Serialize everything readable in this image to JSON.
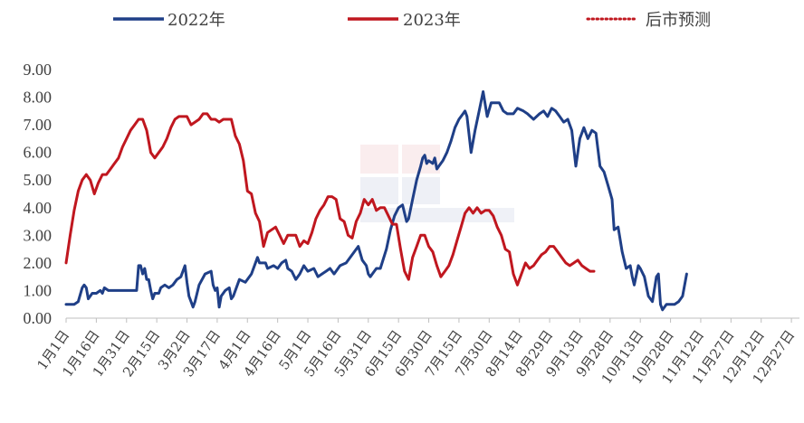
{
  "chart_data": {
    "type": "line",
    "ylim": [
      0,
      9
    ],
    "yticks": [
      "0.00",
      "1.00",
      "2.00",
      "3.00",
      "4.00",
      "5.00",
      "6.00",
      "7.00",
      "8.00",
      "9.00"
    ],
    "xlim": [
      1,
      365
    ],
    "xticks": [
      {
        "label": "1月1日",
        "d": 1
      },
      {
        "label": "1月16日",
        "d": 16
      },
      {
        "label": "1月31日",
        "d": 31
      },
      {
        "label": "2月15日",
        "d": 46
      },
      {
        "label": "3月2日",
        "d": 61
      },
      {
        "label": "3月17日",
        "d": 76
      },
      {
        "label": "4月1日",
        "d": 91
      },
      {
        "label": "4月16日",
        "d": 106
      },
      {
        "label": "5月1日",
        "d": 121
      },
      {
        "label": "5月16日",
        "d": 136
      },
      {
        "label": "5月31日",
        "d": 151
      },
      {
        "label": "6月15日",
        "d": 166
      },
      {
        "label": "6月30日",
        "d": 181
      },
      {
        "label": "7月15日",
        "d": 196
      },
      {
        "label": "7月30日",
        "d": 211
      },
      {
        "label": "8月14日",
        "d": 226
      },
      {
        "label": "8月29日",
        "d": 241
      },
      {
        "label": "9月13日",
        "d": 256
      },
      {
        "label": "9月28日",
        "d": 271
      },
      {
        "label": "10月13日",
        "d": 286
      },
      {
        "label": "10月28日",
        "d": 301
      },
      {
        "label": "11月12日",
        "d": 316
      },
      {
        "label": "11月27日",
        "d": 331
      },
      {
        "label": "12月12日",
        "d": 346
      },
      {
        "label": "12月27日",
        "d": 361
      }
    ],
    "legend": {
      "placement": "top",
      "entries": [
        "2022年",
        "2023年",
        "后市预测"
      ]
    },
    "series": [
      {
        "name": "2022年",
        "color": "#1F3F87",
        "points": [
          [
            1,
            0.5
          ],
          [
            5,
            0.5
          ],
          [
            7,
            0.6
          ],
          [
            9,
            1.1
          ],
          [
            10,
            1.2
          ],
          [
            11,
            1.1
          ],
          [
            12,
            0.7
          ],
          [
            14,
            0.9
          ],
          [
            16,
            0.9
          ],
          [
            18,
            1.0
          ],
          [
            19,
            0.9
          ],
          [
            20,
            1.1
          ],
          [
            22,
            1.0
          ],
          [
            30,
            1.0
          ],
          [
            36,
            1.0
          ],
          [
            37,
            1.9
          ],
          [
            38,
            1.9
          ],
          [
            39,
            1.6
          ],
          [
            40,
            1.8
          ],
          [
            41,
            1.4
          ],
          [
            42,
            1.4
          ],
          [
            43,
            1.0
          ],
          [
            44,
            0.7
          ],
          [
            45,
            0.9
          ],
          [
            47,
            0.9
          ],
          [
            48,
            1.1
          ],
          [
            50,
            1.2
          ],
          [
            52,
            1.1
          ],
          [
            54,
            1.2
          ],
          [
            56,
            1.4
          ],
          [
            58,
            1.5
          ],
          [
            60,
            1.9
          ],
          [
            61,
            1.3
          ],
          [
            62,
            0.8
          ],
          [
            63,
            0.6
          ],
          [
            64,
            0.4
          ],
          [
            65,
            0.6
          ],
          [
            67,
            1.2
          ],
          [
            70,
            1.6
          ],
          [
            73,
            1.7
          ],
          [
            74,
            1.2
          ],
          [
            75,
            1.0
          ],
          [
            76,
            1.1
          ],
          [
            77,
            0.4
          ],
          [
            78,
            0.8
          ],
          [
            80,
            1.0
          ],
          [
            82,
            1.1
          ],
          [
            83,
            0.7
          ],
          [
            84,
            0.8
          ],
          [
            87,
            1.4
          ],
          [
            90,
            1.3
          ],
          [
            93,
            1.6
          ],
          [
            96,
            2.2
          ],
          [
            97,
            2.0
          ],
          [
            100,
            2.0
          ],
          [
            101,
            1.8
          ],
          [
            104,
            1.9
          ],
          [
            106,
            1.8
          ],
          [
            108,
            2.0
          ],
          [
            110,
            2.1
          ],
          [
            111,
            1.8
          ],
          [
            113,
            1.7
          ],
          [
            115,
            1.4
          ],
          [
            117,
            1.6
          ],
          [
            119,
            1.9
          ],
          [
            121,
            1.7
          ],
          [
            124,
            1.8
          ],
          [
            126,
            1.5
          ],
          [
            128,
            1.6
          ],
          [
            130,
            1.7
          ],
          [
            132,
            1.8
          ],
          [
            134,
            1.6
          ],
          [
            137,
            1.9
          ],
          [
            140,
            2.0
          ],
          [
            143,
            2.3
          ],
          [
            146,
            2.6
          ],
          [
            148,
            2.1
          ],
          [
            150,
            1.9
          ],
          [
            151,
            1.6
          ],
          [
            152,
            1.5
          ],
          [
            153,
            1.6
          ],
          [
            155,
            1.8
          ],
          [
            157,
            1.8
          ],
          [
            160,
            2.5
          ],
          [
            162,
            3.2
          ],
          [
            164,
            3.7
          ],
          [
            166,
            4.0
          ],
          [
            168,
            4.1
          ],
          [
            169,
            3.8
          ],
          [
            170,
            3.5
          ],
          [
            171,
            3.6
          ],
          [
            173,
            4.3
          ],
          [
            175,
            5.0
          ],
          [
            177,
            5.5
          ],
          [
            178,
            5.8
          ],
          [
            179,
            5.9
          ],
          [
            180,
            5.6
          ],
          [
            181,
            5.7
          ],
          [
            183,
            5.6
          ],
          [
            184,
            5.8
          ],
          [
            185,
            5.4
          ],
          [
            186,
            5.5
          ],
          [
            188,
            5.7
          ],
          [
            190,
            6.0
          ],
          [
            192,
            6.4
          ],
          [
            194,
            6.9
          ],
          [
            196,
            7.2
          ],
          [
            198,
            7.4
          ],
          [
            199,
            7.5
          ],
          [
            200,
            7.3
          ],
          [
            202,
            6.0
          ],
          [
            204,
            6.8
          ],
          [
            206,
            7.5
          ],
          [
            208,
            8.2
          ],
          [
            210,
            7.3
          ],
          [
            212,
            7.8
          ],
          [
            214,
            7.8
          ],
          [
            216,
            7.8
          ],
          [
            218,
            7.5
          ],
          [
            220,
            7.4
          ],
          [
            223,
            7.4
          ],
          [
            225,
            7.6
          ],
          [
            228,
            7.5
          ],
          [
            230,
            7.4
          ],
          [
            233,
            7.2
          ],
          [
            236,
            7.4
          ],
          [
            238,
            7.5
          ],
          [
            240,
            7.3
          ],
          [
            242,
            7.6
          ],
          [
            244,
            7.5
          ],
          [
            246,
            7.3
          ],
          [
            248,
            7.1
          ],
          [
            250,
            7.2
          ],
          [
            252,
            6.8
          ],
          [
            254,
            5.5
          ],
          [
            256,
            6.5
          ],
          [
            258,
            6.9
          ],
          [
            260,
            6.5
          ],
          [
            262,
            6.8
          ],
          [
            264,
            6.7
          ],
          [
            266,
            5.5
          ],
          [
            268,
            5.3
          ],
          [
            270,
            4.8
          ],
          [
            272,
            4.3
          ],
          [
            273,
            3.2
          ],
          [
            275,
            3.3
          ],
          [
            277,
            2.4
          ],
          [
            279,
            1.8
          ],
          [
            281,
            1.9
          ],
          [
            282,
            1.5
          ],
          [
            283,
            1.2
          ],
          [
            285,
            1.9
          ],
          [
            286,
            1.8
          ],
          [
            288,
            1.5
          ],
          [
            290,
            0.8
          ],
          [
            292,
            0.6
          ],
          [
            294,
            1.5
          ],
          [
            295,
            1.6
          ],
          [
            296,
            0.5
          ],
          [
            297,
            0.3
          ],
          [
            299,
            0.5
          ],
          [
            301,
            0.5
          ],
          [
            303,
            0.5
          ],
          [
            305,
            0.6
          ],
          [
            307,
            0.8
          ],
          [
            309,
            1.6
          ]
        ]
      },
      {
        "name": "2023年",
        "color": "#C0171F",
        "points": [
          [
            1,
            2.0
          ],
          [
            3,
            3.0
          ],
          [
            5,
            3.9
          ],
          [
            7,
            4.6
          ],
          [
            9,
            5.0
          ],
          [
            11,
            5.2
          ],
          [
            13,
            5.0
          ],
          [
            15,
            4.5
          ],
          [
            17,
            4.9
          ],
          [
            19,
            5.2
          ],
          [
            21,
            5.2
          ],
          [
            23,
            5.4
          ],
          [
            25,
            5.6
          ],
          [
            27,
            5.8
          ],
          [
            29,
            6.2
          ],
          [
            31,
            6.5
          ],
          [
            33,
            6.8
          ],
          [
            35,
            7.0
          ],
          [
            37,
            7.2
          ],
          [
            39,
            7.2
          ],
          [
            41,
            6.8
          ],
          [
            43,
            6.0
          ],
          [
            45,
            5.8
          ],
          [
            47,
            6.0
          ],
          [
            49,
            6.2
          ],
          [
            51,
            6.5
          ],
          [
            53,
            6.9
          ],
          [
            55,
            7.2
          ],
          [
            57,
            7.3
          ],
          [
            59,
            7.3
          ],
          [
            61,
            7.3
          ],
          [
            63,
            7.0
          ],
          [
            65,
            7.1
          ],
          [
            67,
            7.2
          ],
          [
            69,
            7.4
          ],
          [
            71,
            7.4
          ],
          [
            73,
            7.2
          ],
          [
            75,
            7.2
          ],
          [
            77,
            7.1
          ],
          [
            79,
            7.2
          ],
          [
            81,
            7.2
          ],
          [
            83,
            7.2
          ],
          [
            85,
            6.6
          ],
          [
            87,
            6.3
          ],
          [
            89,
            5.7
          ],
          [
            91,
            4.6
          ],
          [
            93,
            4.5
          ],
          [
            95,
            3.8
          ],
          [
            97,
            3.5
          ],
          [
            99,
            2.6
          ],
          [
            101,
            3.1
          ],
          [
            103,
            3.2
          ],
          [
            105,
            3.3
          ],
          [
            107,
            3.0
          ],
          [
            109,
            2.7
          ],
          [
            111,
            3.0
          ],
          [
            113,
            3.0
          ],
          [
            115,
            3.0
          ],
          [
            117,
            2.6
          ],
          [
            119,
            2.8
          ],
          [
            121,
            2.7
          ],
          [
            123,
            3.1
          ],
          [
            125,
            3.6
          ],
          [
            127,
            3.9
          ],
          [
            129,
            4.1
          ],
          [
            131,
            4.4
          ],
          [
            133,
            4.4
          ],
          [
            135,
            4.3
          ],
          [
            137,
            3.6
          ],
          [
            139,
            3.5
          ],
          [
            141,
            3.0
          ],
          [
            143,
            2.9
          ],
          [
            145,
            3.5
          ],
          [
            147,
            3.8
          ],
          [
            149,
            4.3
          ],
          [
            151,
            4.1
          ],
          [
            153,
            4.3
          ],
          [
            155,
            3.9
          ],
          [
            157,
            4.0
          ],
          [
            159,
            4.0
          ],
          [
            161,
            3.7
          ],
          [
            163,
            3.4
          ],
          [
            165,
            3.4
          ],
          [
            167,
            2.5
          ],
          [
            169,
            1.7
          ],
          [
            171,
            1.4
          ],
          [
            173,
            2.2
          ],
          [
            175,
            2.6
          ],
          [
            177,
            3.0
          ],
          [
            179,
            3.0
          ],
          [
            181,
            2.6
          ],
          [
            183,
            2.4
          ],
          [
            185,
            1.9
          ],
          [
            187,
            1.5
          ],
          [
            189,
            1.7
          ],
          [
            191,
            1.9
          ],
          [
            193,
            2.3
          ],
          [
            195,
            2.8
          ],
          [
            197,
            3.3
          ],
          [
            199,
            3.8
          ],
          [
            201,
            4.0
          ],
          [
            203,
            3.8
          ],
          [
            205,
            4.0
          ],
          [
            207,
            3.8
          ],
          [
            209,
            3.9
          ],
          [
            211,
            3.9
          ],
          [
            213,
            3.7
          ],
          [
            215,
            3.3
          ],
          [
            217,
            3.0
          ],
          [
            219,
            2.5
          ],
          [
            221,
            2.4
          ],
          [
            223,
            1.6
          ],
          [
            225,
            1.2
          ],
          [
            227,
            1.6
          ],
          [
            229,
            2.0
          ],
          [
            231,
            1.8
          ],
          [
            233,
            1.9
          ],
          [
            235,
            2.1
          ],
          [
            237,
            2.3
          ],
          [
            239,
            2.4
          ],
          [
            241,
            2.6
          ],
          [
            243,
            2.6
          ],
          [
            245,
            2.4
          ],
          [
            247,
            2.2
          ],
          [
            249,
            2.0
          ],
          [
            251,
            1.9
          ],
          [
            253,
            2.0
          ],
          [
            255,
            2.1
          ],
          [
            257,
            1.9
          ],
          [
            259,
            1.8
          ],
          [
            261,
            1.7
          ],
          [
            263,
            1.7
          ]
        ]
      }
    ]
  }
}
